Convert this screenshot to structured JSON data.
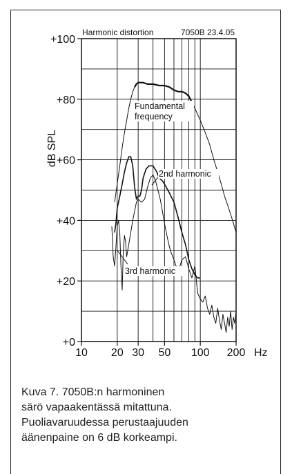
{
  "chart_data": {
    "type": "line",
    "title": "Harmonic distortion",
    "subtitle": "7050B 23.4.05",
    "xlabel": "Hz",
    "ylabel": "dB SPL",
    "x_scale": "log",
    "xlim": [
      10,
      200
    ],
    "ylim": [
      0,
      100
    ],
    "grid": true,
    "x_ticks": [
      10,
      20,
      30,
      50,
      100,
      200
    ],
    "x_tick_labels": [
      "10",
      "20",
      "30",
      "50",
      "100",
      "200"
    ],
    "y_ticks": [
      0,
      20,
      40,
      60,
      80,
      100
    ],
    "y_tick_labels": [
      "+0",
      "+20",
      "+40",
      "+60",
      "+80",
      "+100"
    ],
    "annotations": [
      {
        "text": "Fundamental",
        "target": "Fundamental frequency"
      },
      {
        "text": "frequency",
        "target": "Fundamental frequency"
      },
      {
        "text": "2nd harmonic",
        "target": "2nd harmonic"
      },
      {
        "text": "3rd harmonic",
        "target": "3rd harmonic"
      }
    ],
    "series": [
      {
        "name": "Fundamental frequency",
        "x": [
          19,
          20,
          21,
          22,
          23,
          24,
          25,
          26,
          27,
          28,
          29,
          30,
          33,
          36,
          40,
          45,
          50,
          55,
          60,
          65,
          70,
          75,
          80,
          85,
          90,
          95,
          100,
          110,
          120,
          130,
          140,
          150,
          160,
          170,
          180,
          190,
          200
        ],
        "y": [
          46,
          52,
          58,
          64,
          69,
          73,
          77,
          80,
          82.5,
          84,
          85,
          85.5,
          85.5,
          85,
          85,
          84.5,
          84.5,
          84,
          83,
          82.5,
          82.5,
          82,
          81,
          79,
          77,
          75,
          73,
          69,
          65,
          60,
          56,
          52,
          48,
          45,
          42,
          39,
          36
        ]
      },
      {
        "name": "2nd harmonic",
        "x": [
          19,
          19.5,
          20,
          21,
          22,
          23,
          24,
          25,
          26,
          27,
          28,
          29,
          30,
          31,
          32,
          33,
          35,
          37,
          40,
          43,
          45,
          48,
          50,
          55,
          60,
          65,
          70,
          75,
          80,
          85,
          90,
          95,
          100
        ],
        "y": [
          36,
          39,
          44,
          48,
          52,
          56,
          59,
          61,
          61,
          58,
          51,
          47,
          48,
          48,
          50,
          54,
          57,
          58,
          58,
          56,
          54,
          53,
          52,
          49,
          46,
          41,
          36,
          32,
          27,
          24,
          22,
          21,
          21
        ]
      },
      {
        "name": "3rd harmonic",
        "x": [
          18,
          18.5,
          19,
          19.5,
          20,
          20.5,
          21,
          21.5,
          22,
          22.5,
          23,
          23.5,
          24,
          25,
          26,
          27,
          28,
          29,
          30,
          32,
          34,
          36,
          38,
          40,
          42,
          44,
          46,
          48,
          50,
          53,
          56,
          60,
          65,
          70,
          75,
          80,
          85,
          90,
          95,
          100,
          105,
          110,
          115,
          120,
          125,
          130,
          135,
          140,
          145,
          150,
          155,
          160,
          165,
          170,
          175,
          180,
          185,
          190,
          195,
          200
        ],
        "y": [
          38,
          28,
          25,
          31,
          38,
          40,
          36,
          25,
          17,
          30,
          35,
          33,
          28,
          32,
          36,
          40,
          43,
          46,
          47,
          46,
          47,
          51,
          54,
          55,
          53,
          50,
          47,
          43,
          39,
          34,
          30,
          27,
          23,
          27,
          28,
          24,
          21,
          25,
          16,
          14,
          13,
          15,
          11,
          9,
          12,
          8,
          6,
          11,
          7,
          4,
          9,
          6,
          3,
          8,
          5,
          10,
          4,
          8,
          6,
          10
        ]
      }
    ]
  },
  "caption": {
    "lines": [
      "Kuva 7. 7050B:n harmoninen",
      "särö vapaakentässä mitattuna.",
      "Puoliavaruudessa perustaajuuden",
      "äänenpaine on 6 dB korkeampi."
    ]
  }
}
